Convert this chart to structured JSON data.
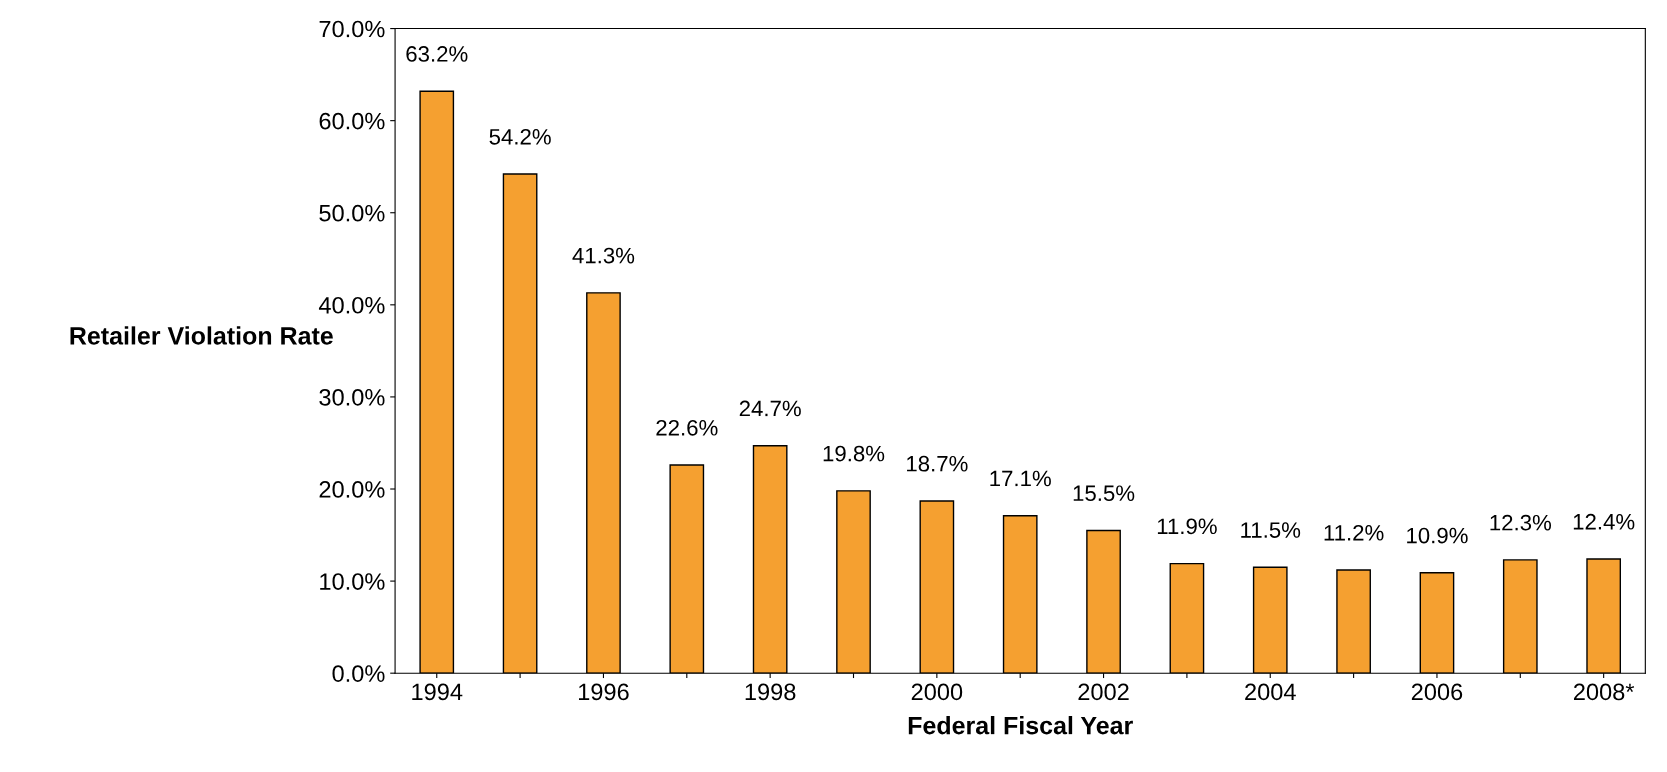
{
  "chart_data": {
    "type": "bar",
    "xlabel": "Federal Fiscal Year",
    "ylabel": "Retailer Violation Rate",
    "categories": [
      "1994",
      null,
      "1996",
      null,
      "1998",
      null,
      "2000",
      null,
      "2002",
      null,
      "2004",
      null,
      "2006",
      null,
      "2008*"
    ],
    "values": [
      63.2,
      54.2,
      41.3,
      22.6,
      24.7,
      19.8,
      18.7,
      17.1,
      15.5,
      11.9,
      11.5,
      11.2,
      10.9,
      12.3,
      12.4
    ],
    "value_labels": [
      "63.2%",
      "54.2%",
      "41.3%",
      "22.6%",
      "24.7%",
      "19.8%",
      "18.7%",
      "17.1%",
      "15.5%",
      "11.9%",
      "11.5%",
      "11.2%",
      "10.9%",
      "12.3%",
      "12.4%"
    ],
    "color": "#f5a030",
    "ylim": [
      0,
      70
    ],
    "yticks": [
      {
        "value": 0,
        "label": "0.0%"
      },
      {
        "value": 10,
        "label": "10.0%"
      },
      {
        "value": 20,
        "label": "20.0%"
      },
      {
        "value": 30,
        "label": "30.0%"
      },
      {
        "value": 40,
        "label": "40.0%"
      },
      {
        "value": 50,
        "label": "50.0%"
      },
      {
        "value": 60,
        "label": "60.0%"
      },
      {
        "value": 70,
        "label": "70.0%"
      }
    ],
    "grid": false,
    "legend": false
  }
}
